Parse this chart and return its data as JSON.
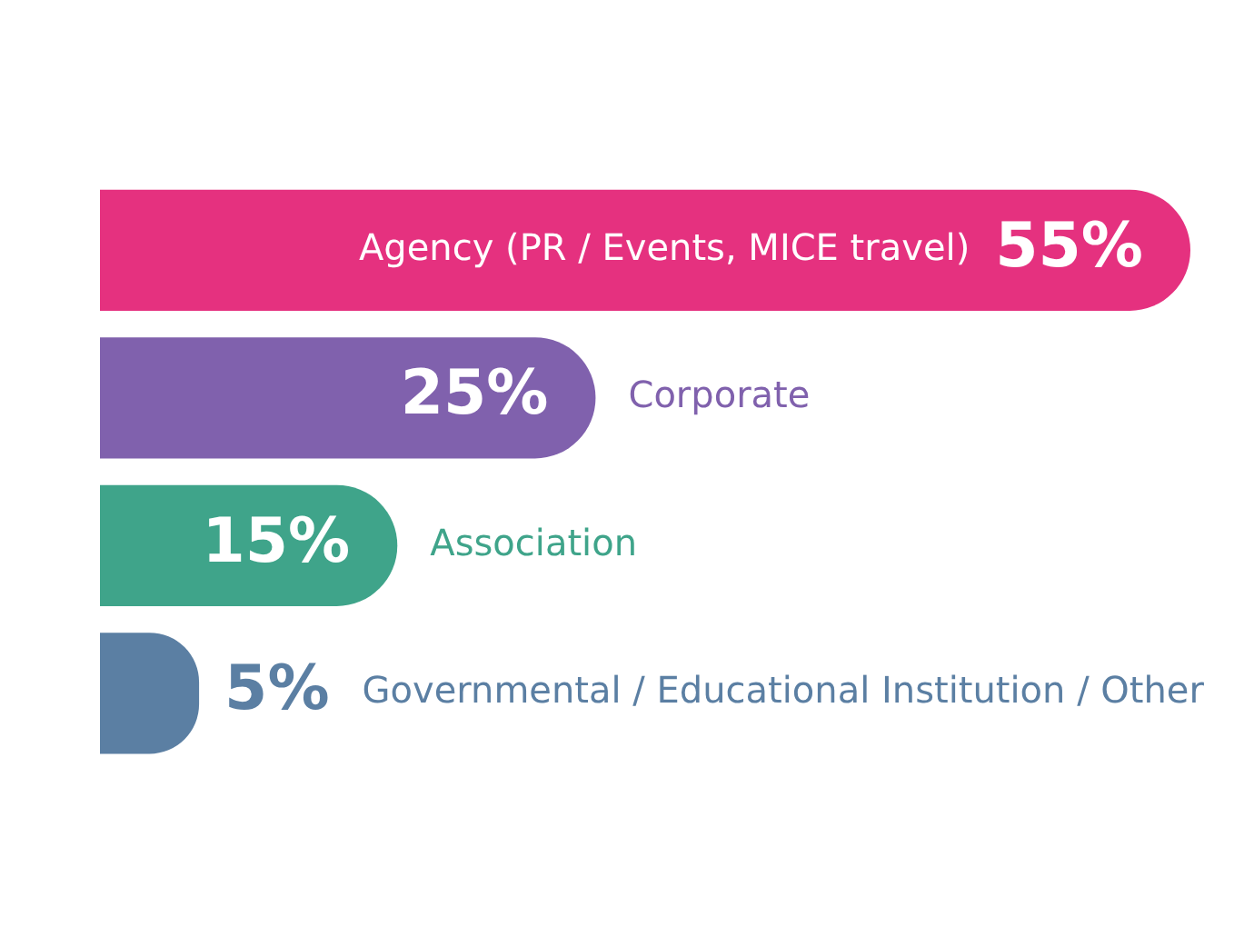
{
  "chart_data": {
    "type": "bar",
    "orientation": "horizontal",
    "tick_labels": false,
    "categories": [
      "Agency (PR / Events, MICE travel)",
      "Corporate",
      "Association",
      "Governmental / Educational Institution / Other"
    ],
    "values": [
      55,
      25,
      15,
      5
    ],
    "value_labels": [
      "55%",
      "25%",
      "15%",
      "5%"
    ],
    "colors": [
      "#e5317f",
      "#8061ad",
      "#3fa48a",
      "#5b7fa3"
    ]
  }
}
